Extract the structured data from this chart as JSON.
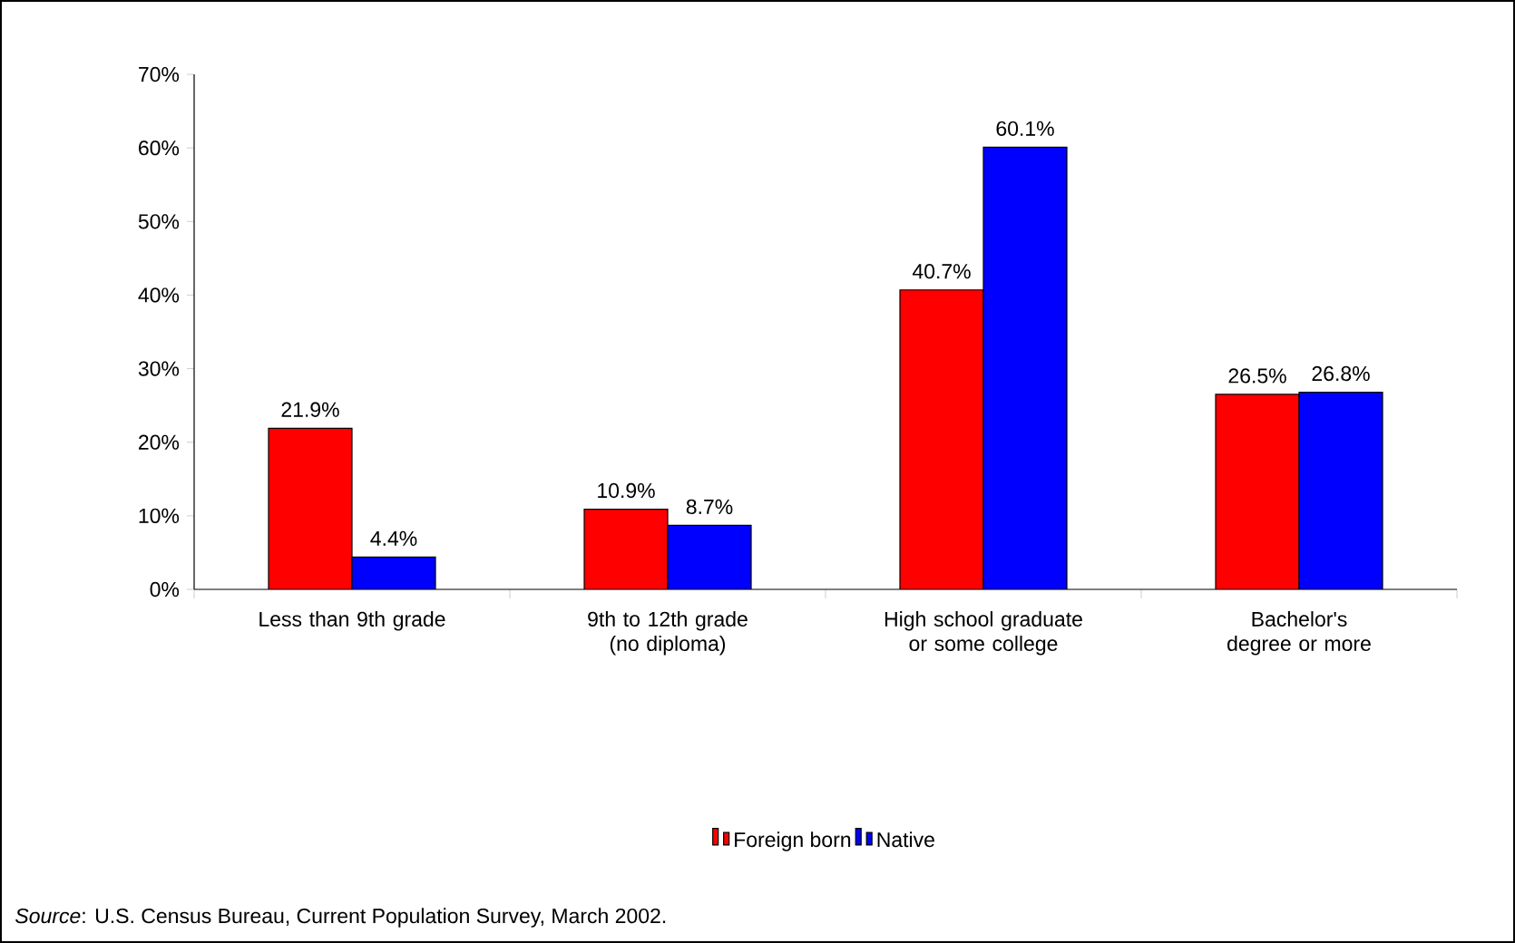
{
  "chart_data": {
    "type": "bar",
    "categories": [
      "Less than 9th grade",
      "9th to 12th grade (no diploma)",
      "High school graduate or some college",
      "Bachelor's degree or more"
    ],
    "series": [
      {
        "name": "Foreign born",
        "color": "#ff0000",
        "values": [
          21.9,
          10.9,
          40.7,
          26.5
        ],
        "value_labels": [
          "21.9%",
          "10.9%",
          "40.7%",
          "26.5%"
        ]
      },
      {
        "name": "Native",
        "color": "#0000ff",
        "values": [
          4.4,
          8.7,
          60.1,
          26.8
        ],
        "value_labels": [
          "4.4%",
          "8.7%",
          "60.1%",
          "26.8%"
        ]
      }
    ],
    "ylim": [
      0,
      70
    ],
    "yticks": [
      {
        "value": 0,
        "label": "0%"
      },
      {
        "value": 10,
        "label": "10%"
      },
      {
        "value": 20,
        "label": "20%"
      },
      {
        "value": 30,
        "label": "30%"
      },
      {
        "value": 40,
        "label": "40%"
      },
      {
        "value": 50,
        "label": "50%"
      },
      {
        "value": 60,
        "label": "60%"
      },
      {
        "value": 70,
        "label": "70%"
      }
    ],
    "grid": false,
    "legend": "bottom",
    "annotations": [
      "*Source*: U.S. Census Bureau, Current Population Survey, March 2002."
    ]
  }
}
